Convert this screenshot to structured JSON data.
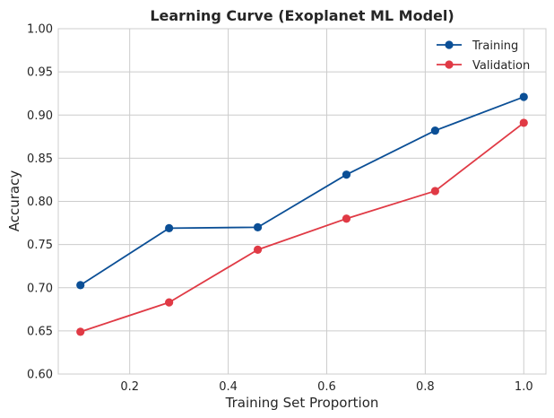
{
  "chart_data": {
    "type": "line",
    "title": "Learning Curve (Exoplanet ML Model)",
    "xlabel": "Training Set Proportion",
    "ylabel": "Accuracy",
    "xlim": [
      0.055,
      1.045
    ],
    "ylim": [
      0.6,
      1.0
    ],
    "xticks": [
      0.2,
      0.4,
      0.6,
      0.8,
      1.0
    ],
    "xtick_labels": [
      "0.2",
      "0.4",
      "0.6",
      "0.8",
      "1.0"
    ],
    "yticks": [
      0.6,
      0.65,
      0.7,
      0.75,
      0.8,
      0.85,
      0.9,
      0.95,
      1.0
    ],
    "ytick_labels": [
      "0.60",
      "0.65",
      "0.70",
      "0.75",
      "0.80",
      "0.85",
      "0.90",
      "0.95",
      "1.00"
    ],
    "grid": true,
    "legend_position": "top-right",
    "x": [
      0.1,
      0.28,
      0.46,
      0.64,
      0.82,
      1.0
    ],
    "series": [
      {
        "name": "Training",
        "color": "#0b4f96",
        "values": [
          0.703,
          0.769,
          0.77,
          0.831,
          0.882,
          0.921
        ]
      },
      {
        "name": "Validation",
        "color": "#e03a45",
        "values": [
          0.649,
          0.683,
          0.744,
          0.78,
          0.812,
          0.891
        ]
      }
    ]
  }
}
